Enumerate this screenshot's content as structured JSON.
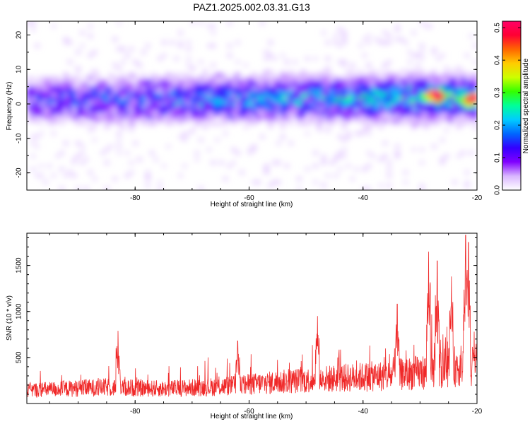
{
  "chart_data": [
    {
      "type": "heatmap",
      "title": "PAZ1.2025.002.03.31.G13",
      "xlabel": "Height of straight line (km)",
      "ylabel": "Frequency (Hz)",
      "xlim": [
        -99,
        -20
      ],
      "ylim": [
        -25,
        24
      ],
      "x_ticks": [
        -80,
        -60,
        -40,
        -20
      ],
      "y_ticks": [
        -20,
        -10,
        0,
        10,
        20
      ],
      "colorbar": {
        "label": "Normalized spectral amplitude",
        "range": [
          0,
          0.52
        ],
        "ticks": [
          0.0,
          0.1,
          0.2,
          0.3,
          0.4,
          0.5
        ],
        "colors": [
          "#ffffff",
          "#d9b6ff",
          "#8000ff",
          "#3300ff",
          "#0066ff",
          "#00ccff",
          "#00ff99",
          "#33ff00",
          "#ccff00",
          "#ffcc00",
          "#ff6600",
          "#ff0033",
          "#ff0066"
        ]
      },
      "features": [
        {
          "label": "main band",
          "x_start": -99,
          "x_end": -20,
          "center_hz_start": 1,
          "center_hz_end": 2,
          "half_width_hz": 5
        },
        {
          "label": "strong peak",
          "x": -27,
          "y": 2.5,
          "amplitude": 0.52
        },
        {
          "label": "strong peak",
          "x": -21,
          "y": 1.5,
          "amplitude": 0.45
        }
      ]
    },
    {
      "type": "line",
      "title": "",
      "xlabel": "Height of straight line (km)",
      "ylabel": "SNR (10 * v/v)",
      "xlim": [
        -99,
        -20
      ],
      "ylim": [
        0,
        1850
      ],
      "x_ticks": [
        -80,
        -60,
        -40,
        -20
      ],
      "y_ticks": [
        500,
        1000,
        1500
      ],
      "series": [
        {
          "name": "SNR",
          "color": "#ff2020",
          "baseline_envelope": [
            {
              "x": -99,
              "y": 180
            },
            {
              "x": -85,
              "y": 220
            },
            {
              "x": -75,
              "y": 200
            },
            {
              "x": -65,
              "y": 230
            },
            {
              "x": -55,
              "y": 290
            },
            {
              "x": -45,
              "y": 340
            },
            {
              "x": -35,
              "y": 380
            },
            {
              "x": -29,
              "y": 430
            },
            {
              "x": -25,
              "y": 500
            },
            {
              "x": -20,
              "y": 520
            }
          ],
          "peaks": [
            {
              "x": -83,
              "y": 790
            },
            {
              "x": -62,
              "y": 680
            },
            {
              "x": -48,
              "y": 950
            },
            {
              "x": -34,
              "y": 1080
            },
            {
              "x": -28.5,
              "y": 1650
            },
            {
              "x": -27,
              "y": 1550
            },
            {
              "x": -24.5,
              "y": 1380
            },
            {
              "x": -22,
              "y": 1830
            },
            {
              "x": -21.5,
              "y": 1750
            },
            {
              "x": -20.5,
              "y": 780
            }
          ]
        }
      ]
    }
  ]
}
